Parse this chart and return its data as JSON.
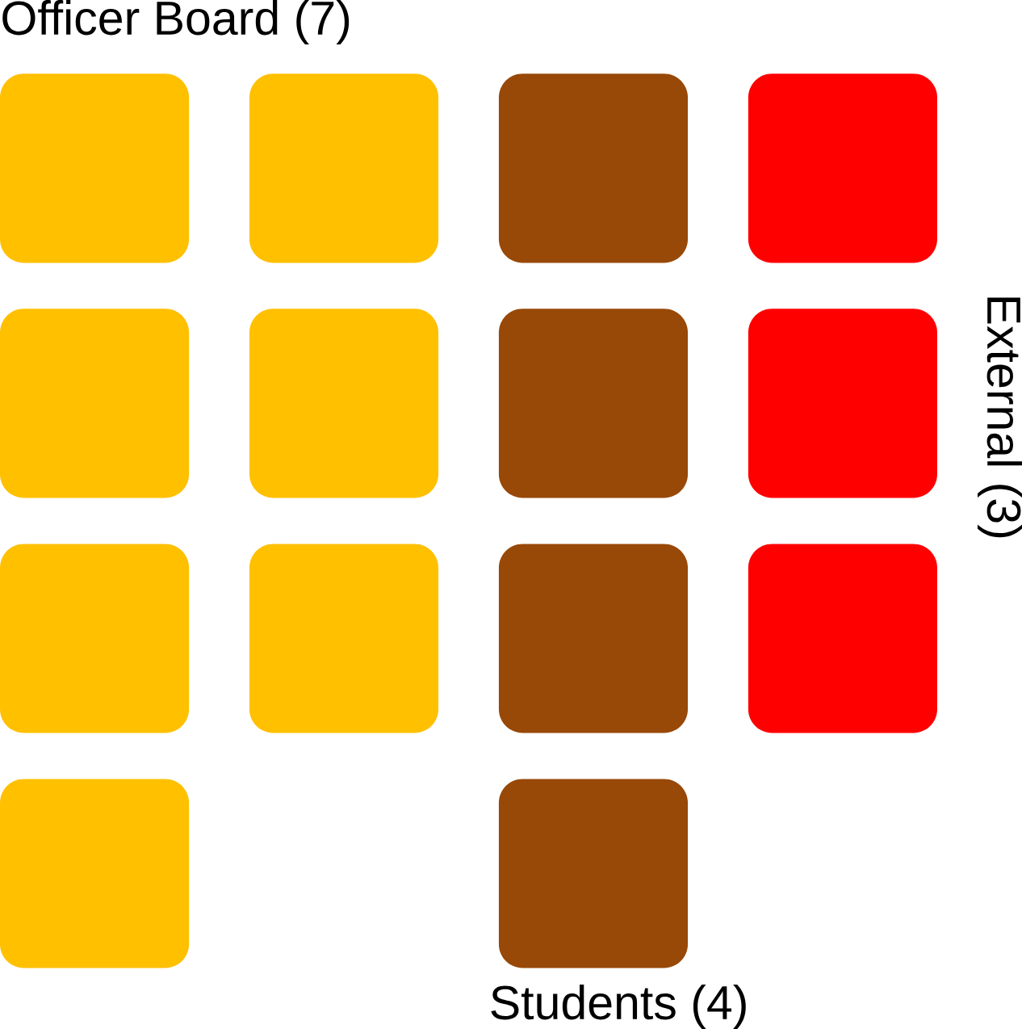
{
  "chart_data": {
    "type": "other",
    "categories": [
      "Officer Board",
      "Students",
      "External"
    ],
    "values": [
      7,
      4,
      3
    ],
    "value_labels": [
      "(7)",
      "(4)",
      "(3)"
    ],
    "colors": [
      "#ffc000",
      "#984807",
      "#ff0000"
    ]
  }
}
